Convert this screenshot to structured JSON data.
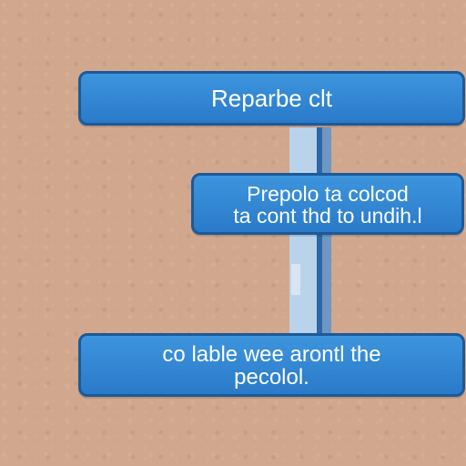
{
  "diagram": {
    "top_box": {
      "text": "Reparbe clt"
    },
    "middle_box": {
      "line1": "Prepolo ta colcod",
      "line2": "ta cont thd to undih.l"
    },
    "bottom_box": {
      "line1": "co lable wee arontl the",
      "line2": "pecolol."
    }
  },
  "colors": {
    "background": "#d1a88d",
    "box_fill": "#2a7ac9",
    "box_border": "#1c5a98",
    "connector_light": "#b9d3ea",
    "connector_dark": "#2e67a8"
  }
}
